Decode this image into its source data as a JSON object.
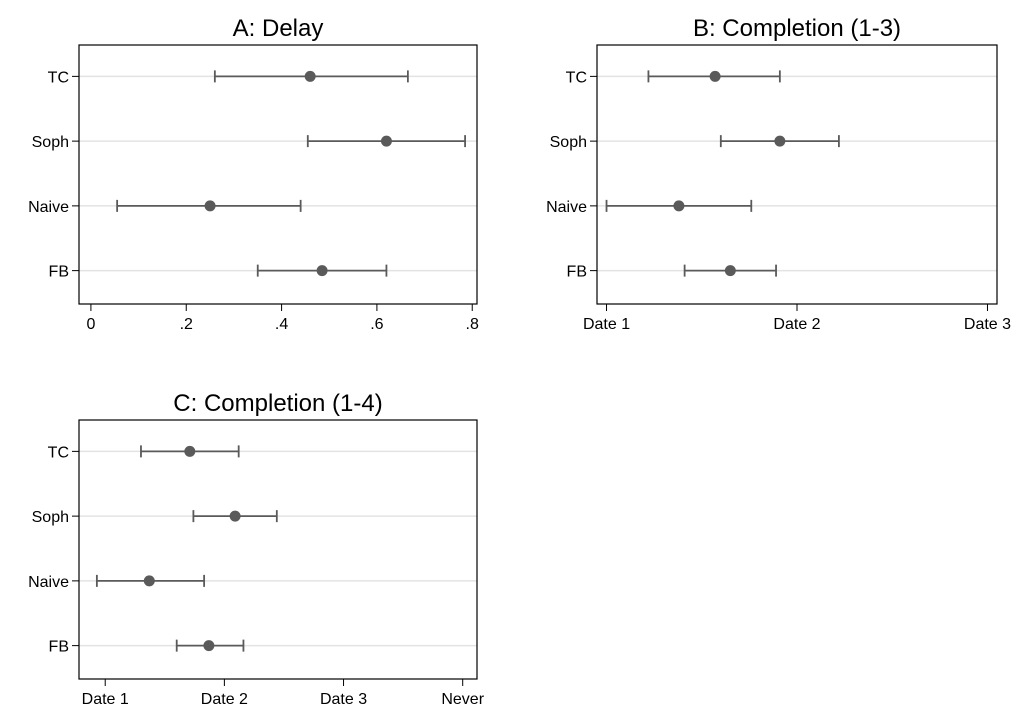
{
  "chart_data": [
    {
      "type": "scatter",
      "title": "A: Delay",
      "categories": [
        "TC",
        "Soph",
        "Naive",
        "FB"
      ],
      "points": [
        {
          "category": "TC",
          "estimate": 0.46,
          "ci_low": 0.26,
          "ci_high": 0.665
        },
        {
          "category": "Soph",
          "estimate": 0.62,
          "ci_low": 0.455,
          "ci_high": 0.785
        },
        {
          "category": "Naive",
          "estimate": 0.25,
          "ci_low": 0.055,
          "ci_high": 0.44
        },
        {
          "category": "FB",
          "estimate": 0.485,
          "ci_low": 0.35,
          "ci_high": 0.62
        }
      ],
      "xticks": [
        {
          "value": 0,
          "label": "0"
        },
        {
          "value": 0.2,
          "label": ".2"
        },
        {
          "value": 0.4,
          "label": ".4"
        },
        {
          "value": 0.6,
          "label": ".6"
        },
        {
          "value": 0.8,
          "label": ".8"
        }
      ],
      "xlim": [
        -0.025,
        0.81
      ],
      "grid": true
    },
    {
      "type": "scatter",
      "title": "B: Completion (1-3)",
      "categories": [
        "TC",
        "Soph",
        "Naive",
        "FB"
      ],
      "points": [
        {
          "category": "TC",
          "estimate": 1.57,
          "ci_low": 1.22,
          "ci_high": 1.91
        },
        {
          "category": "Soph",
          "estimate": 1.91,
          "ci_low": 1.6,
          "ci_high": 2.22
        },
        {
          "category": "Naive",
          "estimate": 1.38,
          "ci_low": 1.0,
          "ci_high": 1.76
        },
        {
          "category": "FB",
          "estimate": 1.65,
          "ci_low": 1.41,
          "ci_high": 1.89
        }
      ],
      "xticks": [
        {
          "value": 1,
          "label": "Date 1"
        },
        {
          "value": 2,
          "label": "Date 2"
        },
        {
          "value": 3,
          "label": "Date 3"
        }
      ],
      "xlim": [
        0.95,
        3.05
      ],
      "grid": true
    },
    {
      "type": "scatter",
      "title": "C: Completion (1-4)",
      "categories": [
        "TC",
        "Soph",
        "Naive",
        "FB"
      ],
      "points": [
        {
          "category": "TC",
          "estimate": 1.71,
          "ci_low": 1.3,
          "ci_high": 2.12
        },
        {
          "category": "Soph",
          "estimate": 2.09,
          "ci_low": 1.74,
          "ci_high": 2.44
        },
        {
          "category": "Naive",
          "estimate": 1.37,
          "ci_low": 0.93,
          "ci_high": 1.83
        },
        {
          "category": "FB",
          "estimate": 1.87,
          "ci_low": 1.6,
          "ci_high": 2.16
        }
      ],
      "xticks": [
        {
          "value": 1,
          "label": "Date 1"
        },
        {
          "value": 2,
          "label": "Date 2"
        },
        {
          "value": 3,
          "label": "Date 3"
        },
        {
          "value": 4,
          "label": "Never"
        }
      ],
      "xlim": [
        0.78,
        4.12
      ],
      "grid": true
    }
  ],
  "colors": {
    "marker": "#5a5a5a",
    "errorbar": "#5a5a5a",
    "grid": "#e3e3e3",
    "frame": "#000000"
  }
}
